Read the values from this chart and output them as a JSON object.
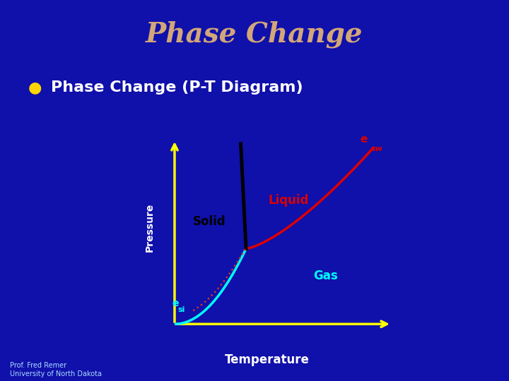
{
  "title": "Phase Change",
  "subtitle": "Phase Change (P-T Diagram)",
  "bullet_color": "#FFD700",
  "title_color": "#D2A679",
  "subtitle_color": "#FFFFFF",
  "bg_color": "#1010AA",
  "plot_bg_color": "#55AADD",
  "axis_color": "#FFFF00",
  "pressure_label": "Pressure",
  "temperature_label": "Temperature",
  "solid_label": "Solid",
  "liquid_label": "Liquid",
  "gas_label": "Gas",
  "esw_main": "e",
  "esw_sub": "sw",
  "esi_main": "e",
  "esi_sub": "si",
  "solid_label_color": "#000000",
  "liquid_label_color": "#DD0000",
  "gas_label_color": "#00FFFF",
  "pressure_label_color": "#FFFFFF",
  "temperature_label_color": "#FFFFFF",
  "esw_color": "#DD0000",
  "esi_color": "#00FFFF",
  "footnote": "Prof. Fred Remer\nUniversity of North Dakota",
  "footnote_color": "#AADDFF",
  "cyan_line_color": "#00FFFF",
  "red_line_color": "#DD0000",
  "black_line_color": "#000000",
  "dashed_color": "#CC3333"
}
